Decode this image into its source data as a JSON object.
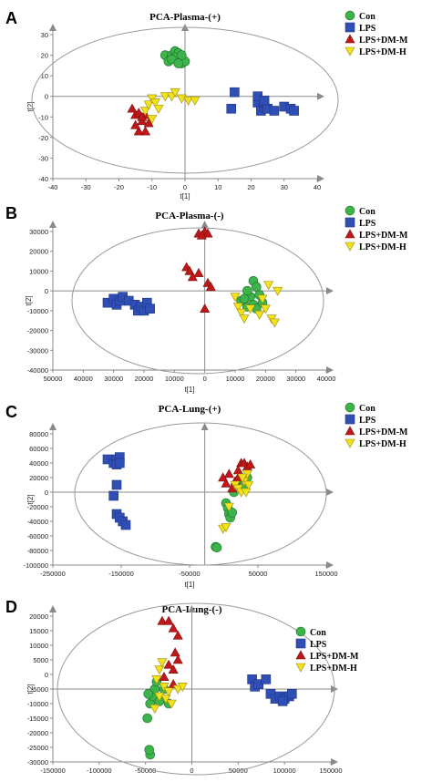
{
  "colors": {
    "con": "#3cb44b",
    "lps": "#2f4fb6",
    "dmm": "#c01818",
    "dmh": "#f2e21c",
    "axis": "#8a8a8a",
    "ellipse": "#9a9a9a"
  },
  "chart_data": [
    {
      "type": "scatter",
      "panel_letter": "A",
      "title": "PCA-Plasma-(+)",
      "xlabel": "t[1]",
      "ylabel": "t[2]",
      "xlim": [
        -40,
        40
      ],
      "ylim": [
        -40,
        30
      ],
      "xticks": [
        "-40",
        "-30",
        "-20",
        "-10",
        "0",
        "10",
        "20",
        "30",
        "40"
      ],
      "yticks": [
        "-40",
        "-30",
        "-20",
        "-10",
        "0",
        "10",
        "20",
        "30"
      ],
      "legend": [
        "Con",
        "LPS",
        "LPS+DM-M",
        "LPS+DM-H"
      ],
      "legend_position": "top-right",
      "series": [
        {
          "name": "Con",
          "marker": "circle",
          "color": "#3cb44b",
          "points": [
            [
              -6,
              20
            ],
            [
              -5,
              17
            ],
            [
              -4,
              20
            ],
            [
              -3,
              22
            ],
            [
              -2,
              18
            ],
            [
              -1,
              16
            ],
            [
              -2,
              21
            ],
            [
              0,
              17
            ],
            [
              -3,
              19
            ],
            [
              -1,
              20
            ],
            [
              -4,
              18
            ],
            [
              -2,
              16
            ]
          ]
        },
        {
          "name": "LPS",
          "marker": "square",
          "color": "#2f4fb6",
          "points": [
            [
              14,
              -6
            ],
            [
              15,
              2
            ],
            [
              22,
              -3
            ],
            [
              23,
              -7
            ],
            [
              24,
              -5
            ],
            [
              24,
              -3
            ],
            [
              25,
              -6
            ],
            [
              27,
              -7
            ],
            [
              30,
              -5
            ],
            [
              32,
              -6
            ],
            [
              33,
              -7
            ],
            [
              22,
              0
            ],
            [
              24,
              -2
            ]
          ]
        },
        {
          "name": "LPS+DM-M",
          "marker": "triangle",
          "color": "#c01818",
          "points": [
            [
              -16,
              -6
            ],
            [
              -15,
              -9
            ],
            [
              -14,
              -8
            ],
            [
              -13,
              -12
            ],
            [
              -14,
              -17
            ],
            [
              -12,
              -17
            ],
            [
              -11,
              -13
            ],
            [
              -12,
              -9
            ],
            [
              -15,
              -14
            ],
            [
              -13,
              -10
            ]
          ]
        },
        {
          "name": "LPS+DM-H",
          "marker": "triangle-down",
          "color": "#f2e21c",
          "points": [
            [
              -12,
              -7
            ],
            [
              -11,
              -4
            ],
            [
              -10,
              -1
            ],
            [
              -9,
              -3
            ],
            [
              -8,
              -6
            ],
            [
              -6,
              0
            ],
            [
              -4,
              0
            ],
            [
              -3,
              2
            ],
            [
              -1,
              -1
            ],
            [
              1,
              -2
            ],
            [
              3,
              -2
            ],
            [
              -10,
              -11
            ]
          ]
        }
      ]
    },
    {
      "type": "scatter",
      "panel_letter": "B",
      "title": "PCA-Plasma-(-)",
      "xlabel": "t[1]",
      "ylabel": "t[2]",
      "xlim": [
        -50000,
        40000
      ],
      "ylim": [
        -40000,
        30000
      ],
      "xticks": [
        "50000",
        "40000",
        "30000",
        "20000",
        "10000",
        "0",
        "10000",
        "20000",
        "30000",
        "40000"
      ],
      "yticks": [
        "-40000",
        "-30000",
        "-20000",
        "-10000",
        "0",
        "10000",
        "20000",
        "30000"
      ],
      "legend": [
        "Con",
        "LPS",
        "LPS+DM-M",
        "LPS+DM-H"
      ],
      "legend_position": "top-right",
      "series": [
        {
          "name": "Con",
          "marker": "circle",
          "color": "#3cb44b",
          "points": [
            [
              12000,
              -5000
            ],
            [
              14000,
              -8000
            ],
            [
              15000,
              -3000
            ],
            [
              16000,
              -7000
            ],
            [
              17000,
              -9000
            ],
            [
              16000,
              5000
            ],
            [
              18000,
              -2000
            ],
            [
              19000,
              -6000
            ],
            [
              14000,
              0
            ],
            [
              17000,
              2000
            ],
            [
              13000,
              -4000
            ]
          ]
        },
        {
          "name": "LPS",
          "marker": "square",
          "color": "#2f4fb6",
          "points": [
            [
              -32000,
              -6000
            ],
            [
              -30000,
              -4000
            ],
            [
              -29000,
              -7000
            ],
            [
              -28000,
              -5000
            ],
            [
              -27000,
              -3000
            ],
            [
              -25000,
              -5000
            ],
            [
              -23000,
              -7000
            ],
            [
              -22000,
              -10000
            ],
            [
              -21000,
              -8000
            ],
            [
              -20000,
              -10000
            ],
            [
              -19000,
              -6000
            ],
            [
              -18000,
              -9000
            ]
          ]
        },
        {
          "name": "LPS+DM-M",
          "marker": "triangle",
          "color": "#c01818",
          "points": [
            [
              -2000,
              29000
            ],
            [
              0,
              30000
            ],
            [
              1000,
              29000
            ],
            [
              -1000,
              28000
            ],
            [
              -6000,
              12000
            ],
            [
              -5000,
              10000
            ],
            [
              -4000,
              7000
            ],
            [
              -2000,
              9000
            ],
            [
              1000,
              4000
            ],
            [
              2000,
              2000
            ],
            [
              0,
              -9000
            ]
          ]
        },
        {
          "name": "LPS+DM-H",
          "marker": "triangle-down",
          "color": "#f2e21c",
          "points": [
            [
              10000,
              -3000
            ],
            [
              11000,
              -8000
            ],
            [
              12000,
              -11000
            ],
            [
              13000,
              -14000
            ],
            [
              15000,
              -9000
            ],
            [
              18000,
              -12000
            ],
            [
              20000,
              -9000
            ],
            [
              22000,
              -14000
            ],
            [
              23000,
              -16000
            ],
            [
              24000,
              0
            ],
            [
              21000,
              3000
            ],
            [
              19000,
              -4000
            ]
          ]
        }
      ]
    },
    {
      "type": "scatter",
      "panel_letter": "C",
      "title": "PCA-Lung-(+)",
      "xlabel": "t[1]",
      "ylabel": "t[2]",
      "xlim": [
        -250000,
        200000
      ],
      "ylim": [
        -100000,
        80000
      ],
      "xticks": [
        "-250000",
        "-150000",
        "-50000",
        "50000",
        "150000"
      ],
      "yticks": [
        "-100000",
        "-80000",
        "-60000",
        "-40000",
        "-20000",
        "0",
        "20000",
        "40000",
        "60000",
        "80000"
      ],
      "legend": [
        "Con",
        "LPS",
        "LPS+DM-M",
        "LPS+DM-H"
      ],
      "legend_position": "top-right",
      "series": [
        {
          "name": "Con",
          "marker": "circle",
          "color": "#3cb44b",
          "points": [
            [
              18000,
              -75000
            ],
            [
              20000,
              -76000
            ],
            [
              35000,
              -15000
            ],
            [
              38000,
              -22000
            ],
            [
              40000,
              -30000
            ],
            [
              42000,
              -35000
            ],
            [
              45000,
              -28000
            ],
            [
              48000,
              0
            ],
            [
              60000,
              15000
            ],
            [
              65000,
              10000
            ],
            [
              70000,
              20000
            ]
          ]
        },
        {
          "name": "LPS",
          "marker": "square",
          "color": "#2f4fb6",
          "points": [
            [
              -160000,
              45000
            ],
            [
              -150000,
              40000
            ],
            [
              -145000,
              45000
            ],
            [
              -140000,
              48000
            ],
            [
              -145000,
              38000
            ],
            [
              -150000,
              -5000
            ],
            [
              -145000,
              -30000
            ],
            [
              -140000,
              -35000
            ],
            [
              -135000,
              -40000
            ],
            [
              -130000,
              -45000
            ],
            [
              -145000,
              10000
            ],
            [
              -140000,
              40000
            ]
          ]
        },
        {
          "name": "LPS+DM-M",
          "marker": "triangle",
          "color": "#c01818",
          "points": [
            [
              30000,
              20000
            ],
            [
              35000,
              12000
            ],
            [
              40000,
              25000
            ],
            [
              45000,
              5000
            ],
            [
              50000,
              15000
            ],
            [
              55000,
              20000
            ],
            [
              60000,
              40000
            ],
            [
              65000,
              40000
            ],
            [
              70000,
              35000
            ],
            [
              75000,
              38000
            ],
            [
              55000,
              30000
            ]
          ]
        },
        {
          "name": "LPS+DM-H",
          "marker": "triangle-down",
          "color": "#f2e21c",
          "points": [
            [
              30000,
              -50000
            ],
            [
              35000,
              -48000
            ],
            [
              40000,
              -20000
            ],
            [
              50000,
              10000
            ],
            [
              55000,
              5000
            ],
            [
              60000,
              0
            ],
            [
              65000,
              15000
            ],
            [
              70000,
              25000
            ],
            [
              72000,
              10000
            ],
            [
              68000,
              0
            ],
            [
              62000,
              20000
            ]
          ]
        }
      ]
    },
    {
      "type": "scatter",
      "panel_letter": "D",
      "title": "PCA-Lung-(-)",
      "xlabel": "",
      "ylabel": "t[2]",
      "xlim": [
        -150000,
        150000
      ],
      "ylim": [
        -30000,
        30000
      ],
      "xticks": [
        "-150000",
        "-100000",
        "-50000",
        "0",
        "50000",
        "100000",
        "150000"
      ],
      "yticks": [
        "-30000",
        "-25000",
        "-20000",
        "-15000",
        "-10000",
        "-5000",
        "0",
        "5000",
        "10000",
        "15000",
        "20000"
      ],
      "legend": [
        "Con",
        "LPS",
        "LPS+DM-M",
        "LPS+DM-H"
      ],
      "legend_position": "top-right",
      "series": [
        {
          "name": "Con",
          "marker": "circle",
          "color": "#3cb44b",
          "points": [
            [
              -45000,
              -27000
            ],
            [
              -46000,
              -25000
            ],
            [
              -48000,
              -12000
            ],
            [
              -45000,
              -6000
            ],
            [
              -42000,
              -3000
            ],
            [
              -40000,
              0
            ],
            [
              -38000,
              3000
            ],
            [
              -35000,
              -5000
            ],
            [
              -25000,
              -6000
            ],
            [
              -30000,
              0
            ],
            [
              -47000,
              -2000
            ]
          ]
        },
        {
          "name": "LPS",
          "marker": "square",
          "color": "#2f4fb6",
          "points": [
            [
              65000,
              4000
            ],
            [
              68000,
              1000
            ],
            [
              72000,
              2000
            ],
            [
              80000,
              4000
            ],
            [
              85000,
              -2000
            ],
            [
              90000,
              -4000
            ],
            [
              95000,
              -3000
            ],
            [
              100000,
              -4000
            ],
            [
              105000,
              -3000
            ],
            [
              108000,
              -2000
            ],
            [
              98000,
              -5000
            ]
          ]
        },
        {
          "name": "LPS+DM-M",
          "marker": "triangle",
          "color": "#c01818",
          "points": [
            [
              -32000,
              28000
            ],
            [
              -25000,
              28000
            ],
            [
              -20000,
              25000
            ],
            [
              -15000,
              22000
            ],
            [
              -18000,
              15000
            ],
            [
              -15000,
              12000
            ],
            [
              -25000,
              10000
            ],
            [
              -20000,
              8000
            ],
            [
              -30000,
              5000
            ],
            [
              -20000,
              2000
            ]
          ]
        },
        {
          "name": "LPS+DM-H",
          "marker": "triangle-down",
          "color": "#f2e21c",
          "points": [
            [
              -38000,
              4000
            ],
            [
              -35000,
              8000
            ],
            [
              -32000,
              11000
            ],
            [
              -30000,
              1000
            ],
            [
              -28000,
              -4000
            ],
            [
              -25000,
              -1000
            ],
            [
              -22000,
              -6000
            ],
            [
              -15000,
              0
            ],
            [
              -10000,
              1000
            ],
            [
              -35000,
              -3000
            ],
            [
              -40000,
              -8000
            ]
          ]
        }
      ]
    }
  ]
}
